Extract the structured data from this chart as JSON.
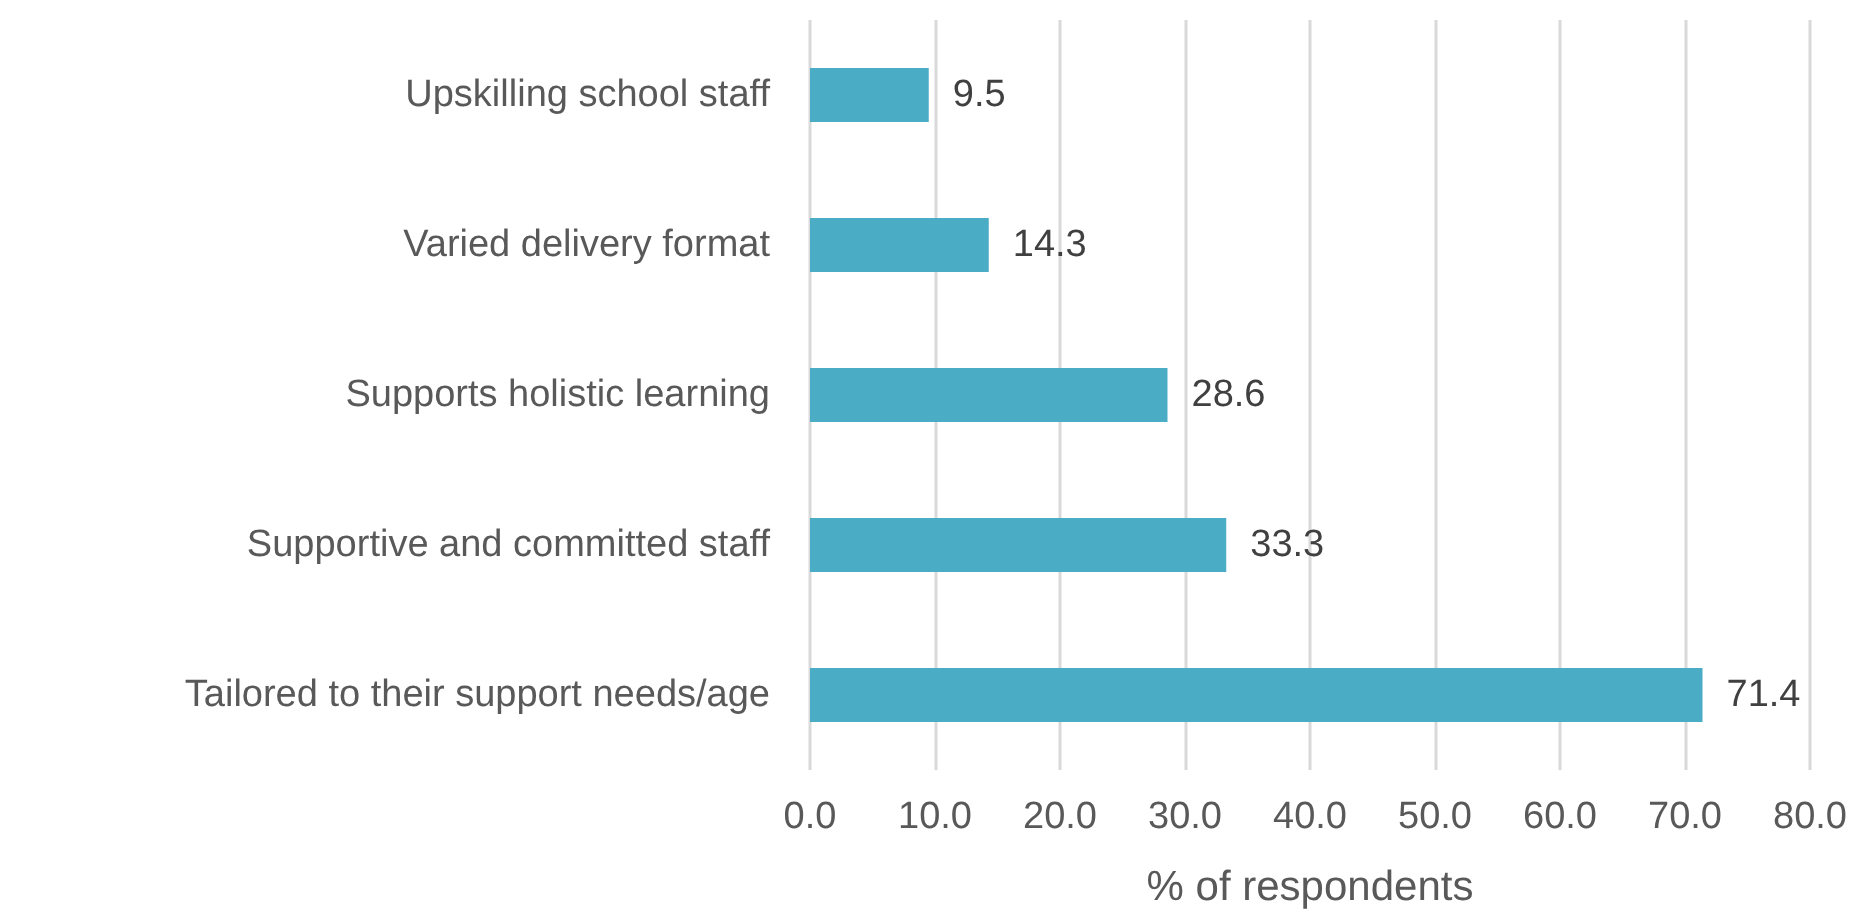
{
  "chart_data": {
    "type": "bar",
    "orientation": "horizontal",
    "categories": [
      "Upskilling school staff",
      "Varied delivery format",
      "Supports holistic learning",
      "Supportive and committed staff",
      "Tailored to their support needs/age"
    ],
    "values": [
      9.5,
      14.3,
      28.6,
      33.3,
      71.4
    ],
    "color": "#4bacc6",
    "xlabel": "% of respondents",
    "xlim": [
      0,
      80
    ],
    "xticks": [
      {
        "value": 0,
        "label": "0.0"
      },
      {
        "value": 10,
        "label": "10.0"
      },
      {
        "value": 20,
        "label": "20.0"
      },
      {
        "value": 30,
        "label": "30.0"
      },
      {
        "value": 40,
        "label": "40.0"
      },
      {
        "value": 50,
        "label": "50.0"
      },
      {
        "value": 60,
        "label": "60.0"
      },
      {
        "value": 70,
        "label": "70.0"
      },
      {
        "value": 80,
        "label": "80.0"
      }
    ],
    "grid": "x",
    "data_labels": true
  }
}
